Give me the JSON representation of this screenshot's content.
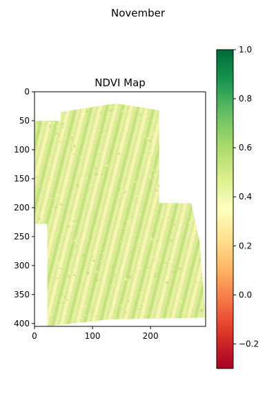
{
  "figure": {
    "suptitle": "November"
  },
  "chart_data": {
    "type": "heatmap",
    "title": "NDVI Map",
    "xlabel": "",
    "ylabel": "",
    "xlim": [
      0,
      295
    ],
    "ylim": [
      405,
      0
    ],
    "x_ticks": [
      0,
      100,
      200
    ],
    "y_ticks": [
      0,
      50,
      100,
      150,
      200,
      250,
      300,
      350,
      400
    ],
    "colorbar": {
      "colormap": "RdYlGn",
      "vmin": -0.3,
      "vmax": 1.0,
      "ticks": [
        -0.2,
        0.0,
        0.2,
        0.4,
        0.6,
        0.8,
        1.0
      ],
      "tick_labels": [
        "−0.2",
        "0.0",
        "0.2",
        "0.4",
        "0.6",
        "0.8",
        "1.0"
      ],
      "stops": [
        "#a50026",
        "#d73027",
        "#f46d43",
        "#fdae61",
        "#fee08b",
        "#ffffbf",
        "#d9ef8b",
        "#a6d96a",
        "#66bd63",
        "#1a9850",
        "#006837"
      ]
    },
    "field_outline": [
      [
        0,
        50
      ],
      [
        45,
        50
      ],
      [
        45,
        35
      ],
      [
        140,
        20
      ],
      [
        215,
        32
      ],
      [
        215,
        192
      ],
      [
        270,
        192
      ],
      [
        285,
        260
      ],
      [
        295,
        390
      ],
      [
        130,
        393
      ],
      [
        22,
        405
      ],
      [
        22,
        228
      ],
      [
        0,
        228
      ]
    ],
    "ndvi_range_shown": [
      0.35,
      0.6
    ],
    "dominant_value": 0.5,
    "stripe_orientation": "diagonal",
    "background": "white"
  }
}
